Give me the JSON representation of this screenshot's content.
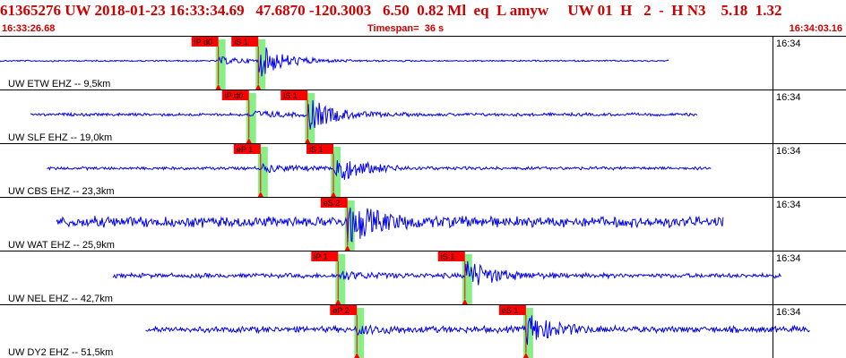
{
  "header": {
    "event_line": "61365276 UW 2018-01-23 16:33:34.69   47.6870 -120.3003   6.50  0.82 Ml  eq  L amyw     UW 01  H   2  -  H N3    5.18  1.32",
    "start_time": "16:33:26.68",
    "timespan_label": "Timespan=",
    "timespan_value": "36 s",
    "end_time": "16:34:03.16"
  },
  "colors": {
    "waveform": "#0000ee",
    "pick_marker": "#ff0000",
    "pick_uncertainty": "#88ee88",
    "header_text": "#cc0000",
    "panel_border": "#000000"
  },
  "time_axis": {
    "start": "16:33:26.68",
    "end": "16:34:03.16",
    "span_seconds": 36
  },
  "traces": [
    {
      "label": "UW ETW EHZ -- 9,5km",
      "time_mark": "16:34",
      "signal_start_s": 0,
      "signal_end_s": 28.5,
      "picks": [
        {
          "label": "iP d0",
          "time_s": 9.3
        },
        {
          "label": "iS 1",
          "time_s": 11.0
        }
      ]
    },
    {
      "label": "UW SLF EHZ -- 19,0km",
      "time_mark": "16:34",
      "signal_start_s": 1.3,
      "signal_end_s": 29.7,
      "picks": [
        {
          "label": "iP d0",
          "time_s": 10.6
        },
        {
          "label": "iS 1",
          "time_s": 13.1
        }
      ]
    },
    {
      "label": "UW CBS EHZ -- 23,3km",
      "time_mark": "16:34",
      "signal_start_s": 2.0,
      "signal_end_s": 30.3,
      "picks": [
        {
          "label": "eP 1",
          "time_s": 11.1
        },
        {
          "label": "iS 1",
          "time_s": 14.2
        }
      ]
    },
    {
      "label": "UW WAT EHZ -- 25,9km",
      "time_mark": "16:34",
      "signal_start_s": 2.4,
      "signal_end_s": 30.8,
      "picks": [
        {
          "label": "eS 2",
          "time_s": 14.8
        }
      ]
    },
    {
      "label": "UW NEL EHZ -- 42,7km",
      "time_mark": "16:34",
      "signal_start_s": 4.8,
      "signal_end_s": 33.3,
      "picks": [
        {
          "label": "iP 1",
          "time_s": 14.4
        },
        {
          "label": "iS 1",
          "time_s": 19.8
        }
      ]
    },
    {
      "label": "UW DY2 EHZ -- 51,5km",
      "time_mark": "16:34",
      "signal_start_s": 6.2,
      "signal_end_s": 34.5,
      "picks": [
        {
          "label": "eP 2",
          "time_s": 15.2
        },
        {
          "label": "eS 1",
          "time_s": 22.4
        }
      ]
    }
  ]
}
